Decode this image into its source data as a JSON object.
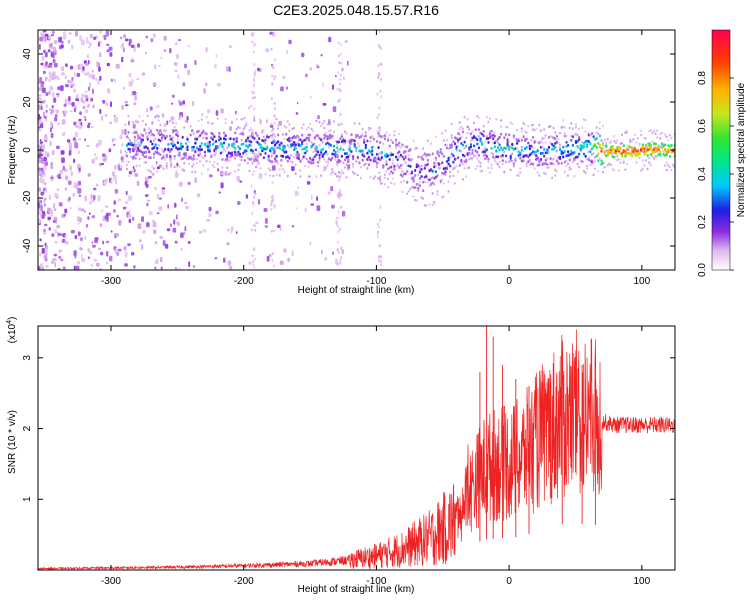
{
  "figure": {
    "title": "C2E3.2025.048.15.57.R16"
  },
  "chart_data": [
    {
      "type": "heatmap",
      "panel": "spectrogram",
      "xlabel": "Height of straight line (km)",
      "ylabel": "Frequency (Hz)",
      "xlim": [
        -355,
        125
      ],
      "ylim": [
        -50,
        50
      ],
      "xticks": [
        -300,
        -200,
        -100,
        0,
        100
      ],
      "yticks": [
        -40,
        -20,
        0,
        20,
        40
      ],
      "colorbar": {
        "label": "Normalized spectral amplitude",
        "ticks": [
          0.0,
          0.2,
          0.4,
          0.6,
          0.8
        ],
        "range": [
          0,
          1
        ],
        "colormap": [
          "#ffffff",
          "#e0b8f0",
          "#8a2be2",
          "#1e1ee6",
          "#00c8ff",
          "#00e68c",
          "#32e632",
          "#c8e61e",
          "#ffb400",
          "#ff3c00",
          "#ff0050"
        ]
      },
      "ridge": {
        "description_free": true,
        "x": [
          -290,
          -250,
          -200,
          -150,
          -120,
          -100,
          -90,
          -80,
          -70,
          -60,
          -50,
          -40,
          -30,
          -20,
          -10,
          0,
          20,
          40,
          60,
          70,
          90,
          110,
          125
        ],
        "frequency": [
          3,
          3,
          2,
          1,
          1,
          0,
          -2,
          -5,
          -8,
          -9,
          -6,
          0,
          4,
          3,
          2,
          1,
          0,
          1,
          2,
          0,
          0,
          1,
          0
        ],
        "amplitude": [
          0.35,
          0.4,
          0.45,
          0.45,
          0.45,
          0.4,
          0.35,
          0.3,
          0.3,
          0.3,
          0.35,
          0.4,
          0.4,
          0.45,
          0.45,
          0.45,
          0.4,
          0.45,
          0.5,
          0.9,
          0.95,
          0.9,
          0.9
        ]
      },
      "noise_region_x": [
        -355,
        -180
      ],
      "colors": {
        "noise": "#7f00ff"
      }
    },
    {
      "type": "line",
      "panel": "snr",
      "xlabel": "Height of straight line (km)",
      "ylabel": "SNR (10 * v/v)",
      "multiplier_label": "(x10",
      "multiplier_exp": "4",
      "multiplier_close": ")",
      "xlim": [
        -355,
        125
      ],
      "ylim": [
        0,
        3.45
      ],
      "xticks": [
        -300,
        -200,
        -100,
        0,
        100
      ],
      "yticks": [
        1,
        2,
        3
      ],
      "series": [
        {
          "color": "#ee2222",
          "envelope_x": [
            -355,
            -300,
            -250,
            -200,
            -150,
            -120,
            -100,
            -80,
            -60,
            -40,
            -30,
            -20,
            -10,
            0,
            10,
            20,
            30,
            40,
            50,
            60,
            70,
            80,
            100,
            125
          ],
          "envelope_y": [
            0.02,
            0.03,
            0.04,
            0.06,
            0.09,
            0.14,
            0.2,
            0.3,
            0.45,
            0.7,
            1.1,
            1.4,
            1.5,
            1.5,
            1.6,
            1.8,
            2.0,
            2.15,
            2.2,
            2.15,
            2.1,
            2.05,
            2.05,
            2.05
          ],
          "spikes": [
            {
              "x": -17,
              "y": 3.45
            },
            {
              "x": -12,
              "y": 3.3
            },
            {
              "x": -22,
              "y": 2.8
            },
            {
              "x": -5,
              "y": 2.9
            },
            {
              "x": 5,
              "y": 2.7
            },
            {
              "x": 15,
              "y": 2.6
            },
            {
              "x": 40,
              "y": 2.8
            },
            {
              "x": 55,
              "y": 2.9
            },
            {
              "x": 65,
              "y": 2.7
            }
          ]
        }
      ]
    }
  ]
}
